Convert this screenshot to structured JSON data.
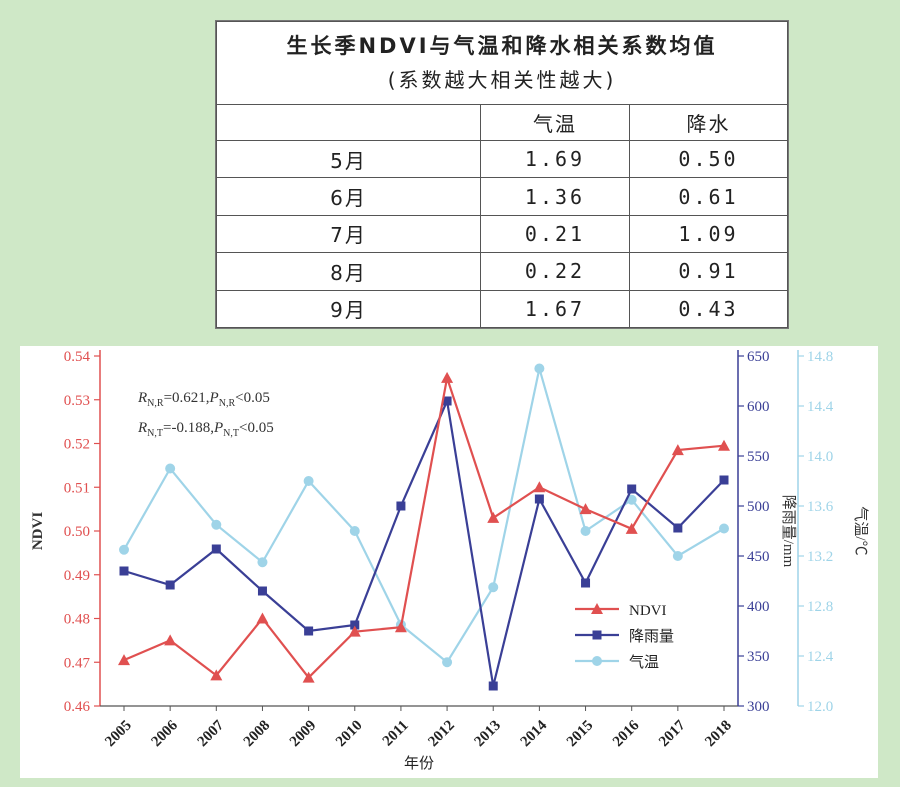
{
  "table": {
    "title": "生长季NDVI与气温和降水相关系数均值",
    "subtitle": "(系数越大相关性越大)",
    "headers": [
      "",
      "气温",
      "降水"
    ],
    "rows": [
      [
        "5月",
        "1.69",
        "0.50"
      ],
      [
        "6月",
        "1.36",
        "0.61"
      ],
      [
        "7月",
        "0.21",
        "1.09"
      ],
      [
        "8月",
        "0.22",
        "0.91"
      ],
      [
        "9月",
        "1.67",
        "0.43"
      ]
    ]
  },
  "chart_data": {
    "type": "line",
    "title": "",
    "xlabel": "年份",
    "x": [
      "2005",
      "2006",
      "2007",
      "2008",
      "2009",
      "2010",
      "2011",
      "2012",
      "2013",
      "2014",
      "2015",
      "2016",
      "2017",
      "2018"
    ],
    "axes": {
      "left": {
        "label": "NDVI",
        "range": [
          0.46,
          0.54
        ],
        "ticks": [
          "0.46",
          "0.47",
          "0.48",
          "0.49",
          "0.50",
          "0.51",
          "0.52",
          "0.53",
          "0.54"
        ],
        "color": "#e05050"
      },
      "right1": {
        "label": "降雨量/mm",
        "range": [
          300,
          650
        ],
        "ticks": [
          "300",
          "350",
          "400",
          "450",
          "500",
          "550",
          "600",
          "650"
        ],
        "color": "#3a3f96"
      },
      "right2": {
        "label": "气温/℃",
        "range": [
          12.0,
          14.8
        ],
        "ticks": [
          "12.0",
          "12.4",
          "12.8",
          "13.2",
          "13.6",
          "14.0",
          "14.4",
          "14.8"
        ],
        "color": "#9fd4e8"
      }
    },
    "series": [
      {
        "name": "NDVI",
        "axis": "left",
        "marker": "triangle",
        "color": "#e05050",
        "values": [
          0.4705,
          0.475,
          0.467,
          0.48,
          0.4665,
          0.477,
          0.478,
          0.535,
          0.503,
          0.51,
          0.505,
          0.5005,
          0.5185,
          0.5195
        ]
      },
      {
        "name": "降雨量",
        "axis": "right1",
        "marker": "square",
        "color": "#3a3f96",
        "values": [
          435,
          421,
          457,
          415,
          375,
          381,
          500,
          605,
          320,
          507,
          423,
          517,
          478,
          526
        ]
      },
      {
        "name": "气温",
        "axis": "right2",
        "marker": "circle",
        "color": "#9fd4e8",
        "values": [
          13.25,
          13.9,
          13.45,
          13.15,
          13.8,
          13.4,
          12.65,
          12.35,
          12.95,
          14.7,
          13.4,
          13.65,
          13.2,
          13.42
        ]
      }
    ],
    "annotations": [
      "R_N,R=0.621,P_N,R<0.05",
      "R_N,T=-0.188,P_N,T<0.05"
    ],
    "legend_position": "bottom-right",
    "grid": false
  },
  "stats": {
    "line1": {
      "r_main": "R",
      "r_sub": "N,R",
      "r_val": "=0.621,",
      "p_main": "P",
      "p_sub": "N,R",
      "p_val": "<0.05"
    },
    "line2": {
      "r_main": "R",
      "r_sub": "N,T",
      "r_val": "=-0.188,",
      "p_main": "P",
      "p_sub": "N,T",
      "p_val": "<0.05"
    }
  }
}
